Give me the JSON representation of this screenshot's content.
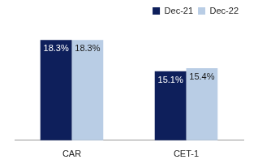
{
  "chart_data": {
    "type": "bar",
    "categories": [
      "CAR",
      "CET-1"
    ],
    "series": [
      {
        "name": "Dec-21",
        "color": "#0e1f5b",
        "values": [
          18.3,
          15.1
        ],
        "value_labels": [
          "18.3%",
          "15.1%"
        ]
      },
      {
        "name": "Dec-22",
        "color": "#b9cde5",
        "values": [
          18.3,
          15.4
        ],
        "value_labels": [
          "18.3%",
          "15.4%"
        ]
      }
    ],
    "ylim": [
      8,
      20
    ],
    "yticks": [
      8,
      12,
      16,
      20
    ],
    "grid": false,
    "legend": "top-right",
    "data_labels": true,
    "tick_labels": "x"
  }
}
